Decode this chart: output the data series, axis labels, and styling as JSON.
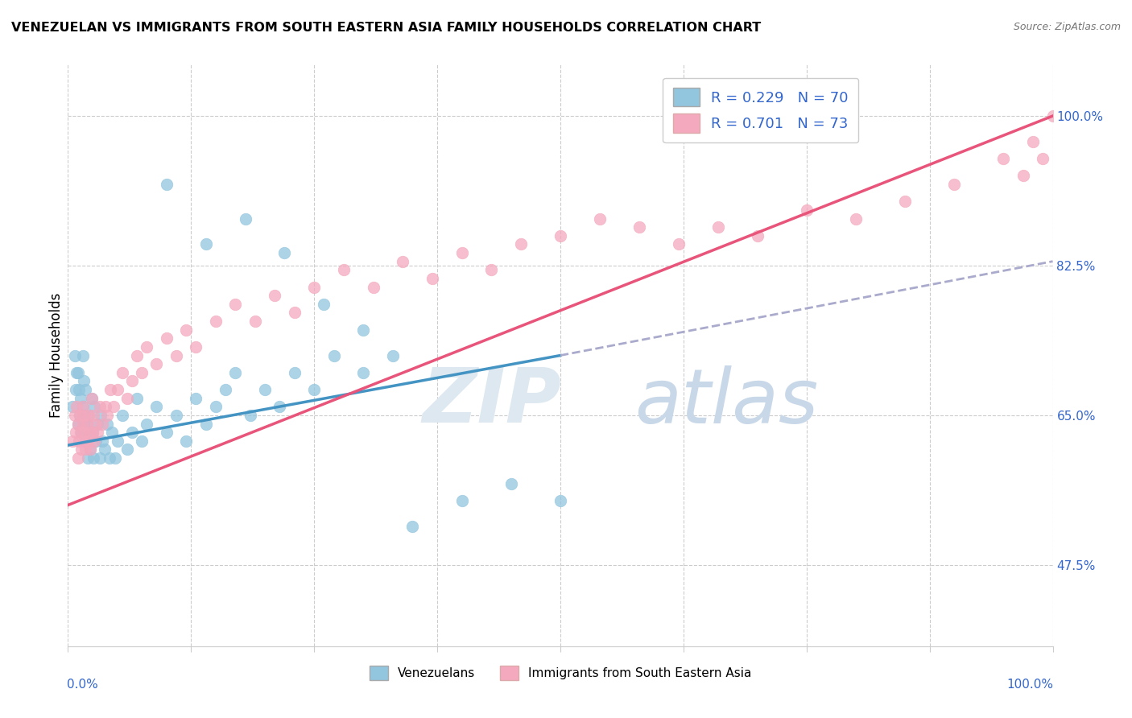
{
  "title": "VENEZUELAN VS IMMIGRANTS FROM SOUTH EASTERN ASIA FAMILY HOUSEHOLDS CORRELATION CHART",
  "source": "Source: ZipAtlas.com",
  "ylabel": "Family Households",
  "ylabel_right_ticks": [
    "47.5%",
    "65.0%",
    "82.5%",
    "100.0%"
  ],
  "ylabel_right_vals": [
    0.475,
    0.65,
    0.825,
    1.0
  ],
  "xlim": [
    0.0,
    1.0
  ],
  "ylim": [
    0.38,
    1.06
  ],
  "legend_label1": "Venezuelans",
  "legend_label2": "Immigrants from South Eastern Asia",
  "r1": 0.229,
  "n1": 70,
  "r2": 0.701,
  "n2": 73,
  "color_blue": "#92c5de",
  "color_pink": "#f4a9be",
  "color_blue_line": "#4393c3",
  "color_pink_line": "#e8547a",
  "color_dashed": "#aaaacc",
  "blue_scatter_x": [
    0.005,
    0.007,
    0.008,
    0.009,
    0.01,
    0.01,
    0.011,
    0.012,
    0.013,
    0.014,
    0.015,
    0.015,
    0.016,
    0.016,
    0.017,
    0.018,
    0.018,
    0.019,
    0.02,
    0.021,
    0.022,
    0.023,
    0.024,
    0.025,
    0.026,
    0.027,
    0.028,
    0.03,
    0.032,
    0.033,
    0.035,
    0.037,
    0.04,
    0.042,
    0.045,
    0.048,
    0.05,
    0.055,
    0.06,
    0.065,
    0.07,
    0.075,
    0.08,
    0.09,
    0.1,
    0.11,
    0.12,
    0.13,
    0.14,
    0.15,
    0.16,
    0.17,
    0.185,
    0.2,
    0.215,
    0.23,
    0.25,
    0.27,
    0.3,
    0.33,
    0.14,
    0.18,
    0.22,
    0.26,
    0.3,
    0.35,
    0.4,
    0.45,
    0.5,
    0.1
  ],
  "blue_scatter_y": [
    0.66,
    0.72,
    0.68,
    0.7,
    0.64,
    0.7,
    0.68,
    0.65,
    0.67,
    0.63,
    0.66,
    0.72,
    0.64,
    0.69,
    0.65,
    0.62,
    0.68,
    0.64,
    0.6,
    0.65,
    0.63,
    0.61,
    0.67,
    0.63,
    0.6,
    0.66,
    0.62,
    0.64,
    0.6,
    0.65,
    0.62,
    0.61,
    0.64,
    0.6,
    0.63,
    0.6,
    0.62,
    0.65,
    0.61,
    0.63,
    0.67,
    0.62,
    0.64,
    0.66,
    0.63,
    0.65,
    0.62,
    0.67,
    0.64,
    0.66,
    0.68,
    0.7,
    0.65,
    0.68,
    0.66,
    0.7,
    0.68,
    0.72,
    0.7,
    0.72,
    0.85,
    0.88,
    0.84,
    0.78,
    0.75,
    0.52,
    0.55,
    0.57,
    0.55,
    0.92
  ],
  "pink_scatter_x": [
    0.005,
    0.007,
    0.008,
    0.009,
    0.01,
    0.01,
    0.011,
    0.012,
    0.013,
    0.014,
    0.015,
    0.015,
    0.016,
    0.016,
    0.017,
    0.018,
    0.019,
    0.02,
    0.021,
    0.022,
    0.023,
    0.024,
    0.025,
    0.026,
    0.027,
    0.028,
    0.03,
    0.032,
    0.035,
    0.038,
    0.04,
    0.043,
    0.046,
    0.05,
    0.055,
    0.06,
    0.065,
    0.07,
    0.075,
    0.08,
    0.09,
    0.1,
    0.11,
    0.12,
    0.13,
    0.15,
    0.17,
    0.19,
    0.21,
    0.23,
    0.25,
    0.28,
    0.31,
    0.34,
    0.37,
    0.4,
    0.43,
    0.46,
    0.5,
    0.54,
    0.58,
    0.62,
    0.66,
    0.7,
    0.75,
    0.8,
    0.85,
    0.9,
    0.95,
    0.97,
    0.98,
    0.99,
    1.0
  ],
  "pink_scatter_y": [
    0.62,
    0.65,
    0.63,
    0.66,
    0.6,
    0.64,
    0.62,
    0.65,
    0.63,
    0.61,
    0.64,
    0.66,
    0.62,
    0.65,
    0.63,
    0.61,
    0.64,
    0.62,
    0.65,
    0.63,
    0.61,
    0.67,
    0.63,
    0.65,
    0.62,
    0.64,
    0.63,
    0.66,
    0.64,
    0.66,
    0.65,
    0.68,
    0.66,
    0.68,
    0.7,
    0.67,
    0.69,
    0.72,
    0.7,
    0.73,
    0.71,
    0.74,
    0.72,
    0.75,
    0.73,
    0.76,
    0.78,
    0.76,
    0.79,
    0.77,
    0.8,
    0.82,
    0.8,
    0.83,
    0.81,
    0.84,
    0.82,
    0.85,
    0.86,
    0.88,
    0.87,
    0.85,
    0.87,
    0.86,
    0.89,
    0.88,
    0.9,
    0.92,
    0.95,
    0.93,
    0.97,
    0.95,
    1.0
  ],
  "blue_line_x": [
    0.0,
    0.5
  ],
  "blue_line_y": [
    0.615,
    0.72
  ],
  "dashed_line_x": [
    0.5,
    1.0
  ],
  "dashed_line_y": [
    0.72,
    0.83
  ],
  "pink_line_x": [
    0.0,
    1.0
  ],
  "pink_line_y": [
    0.545,
    1.0
  ]
}
